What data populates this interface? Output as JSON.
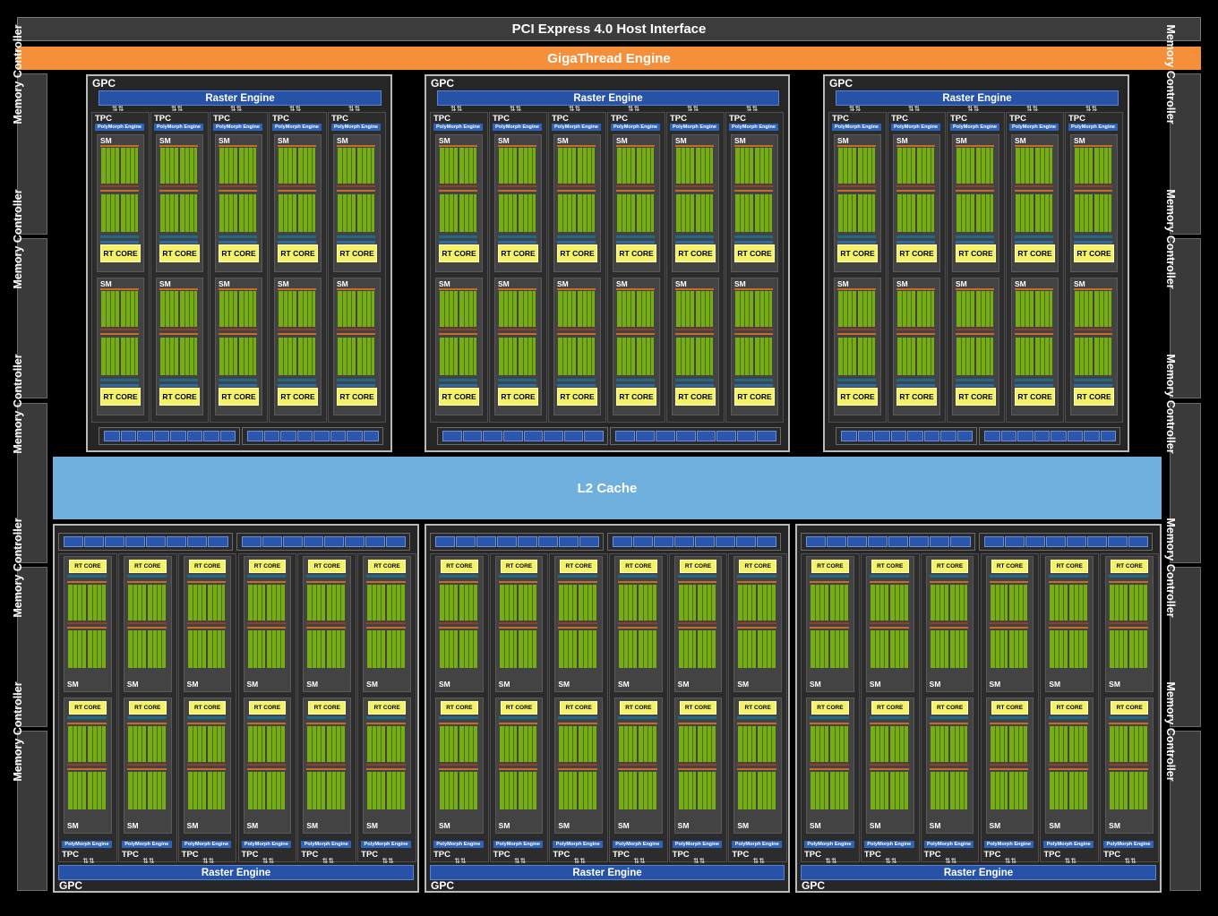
{
  "title": "PCI Express 4.0 Host Interface",
  "gigathread": "GigaThread Engine",
  "l2_cache": "L2 Cache",
  "memory_controller_label": "Memory Controller",
  "gpc_label": "GPC",
  "raster_label": "Raster Engine",
  "tpc_label": "TPC",
  "polymorph_label": "PolyMorph Engine",
  "sm_label": "SM",
  "rt_label": "RT CORE",
  "arrows": "⇅⇅",
  "colors": {
    "pcie": "#3c3c3c",
    "gigathread": "#f58f3a",
    "l2": "#6fb0df",
    "raster": "#2653a8",
    "rt_core": "#f4f26a",
    "cuda_core": "#77ad14"
  }
}
